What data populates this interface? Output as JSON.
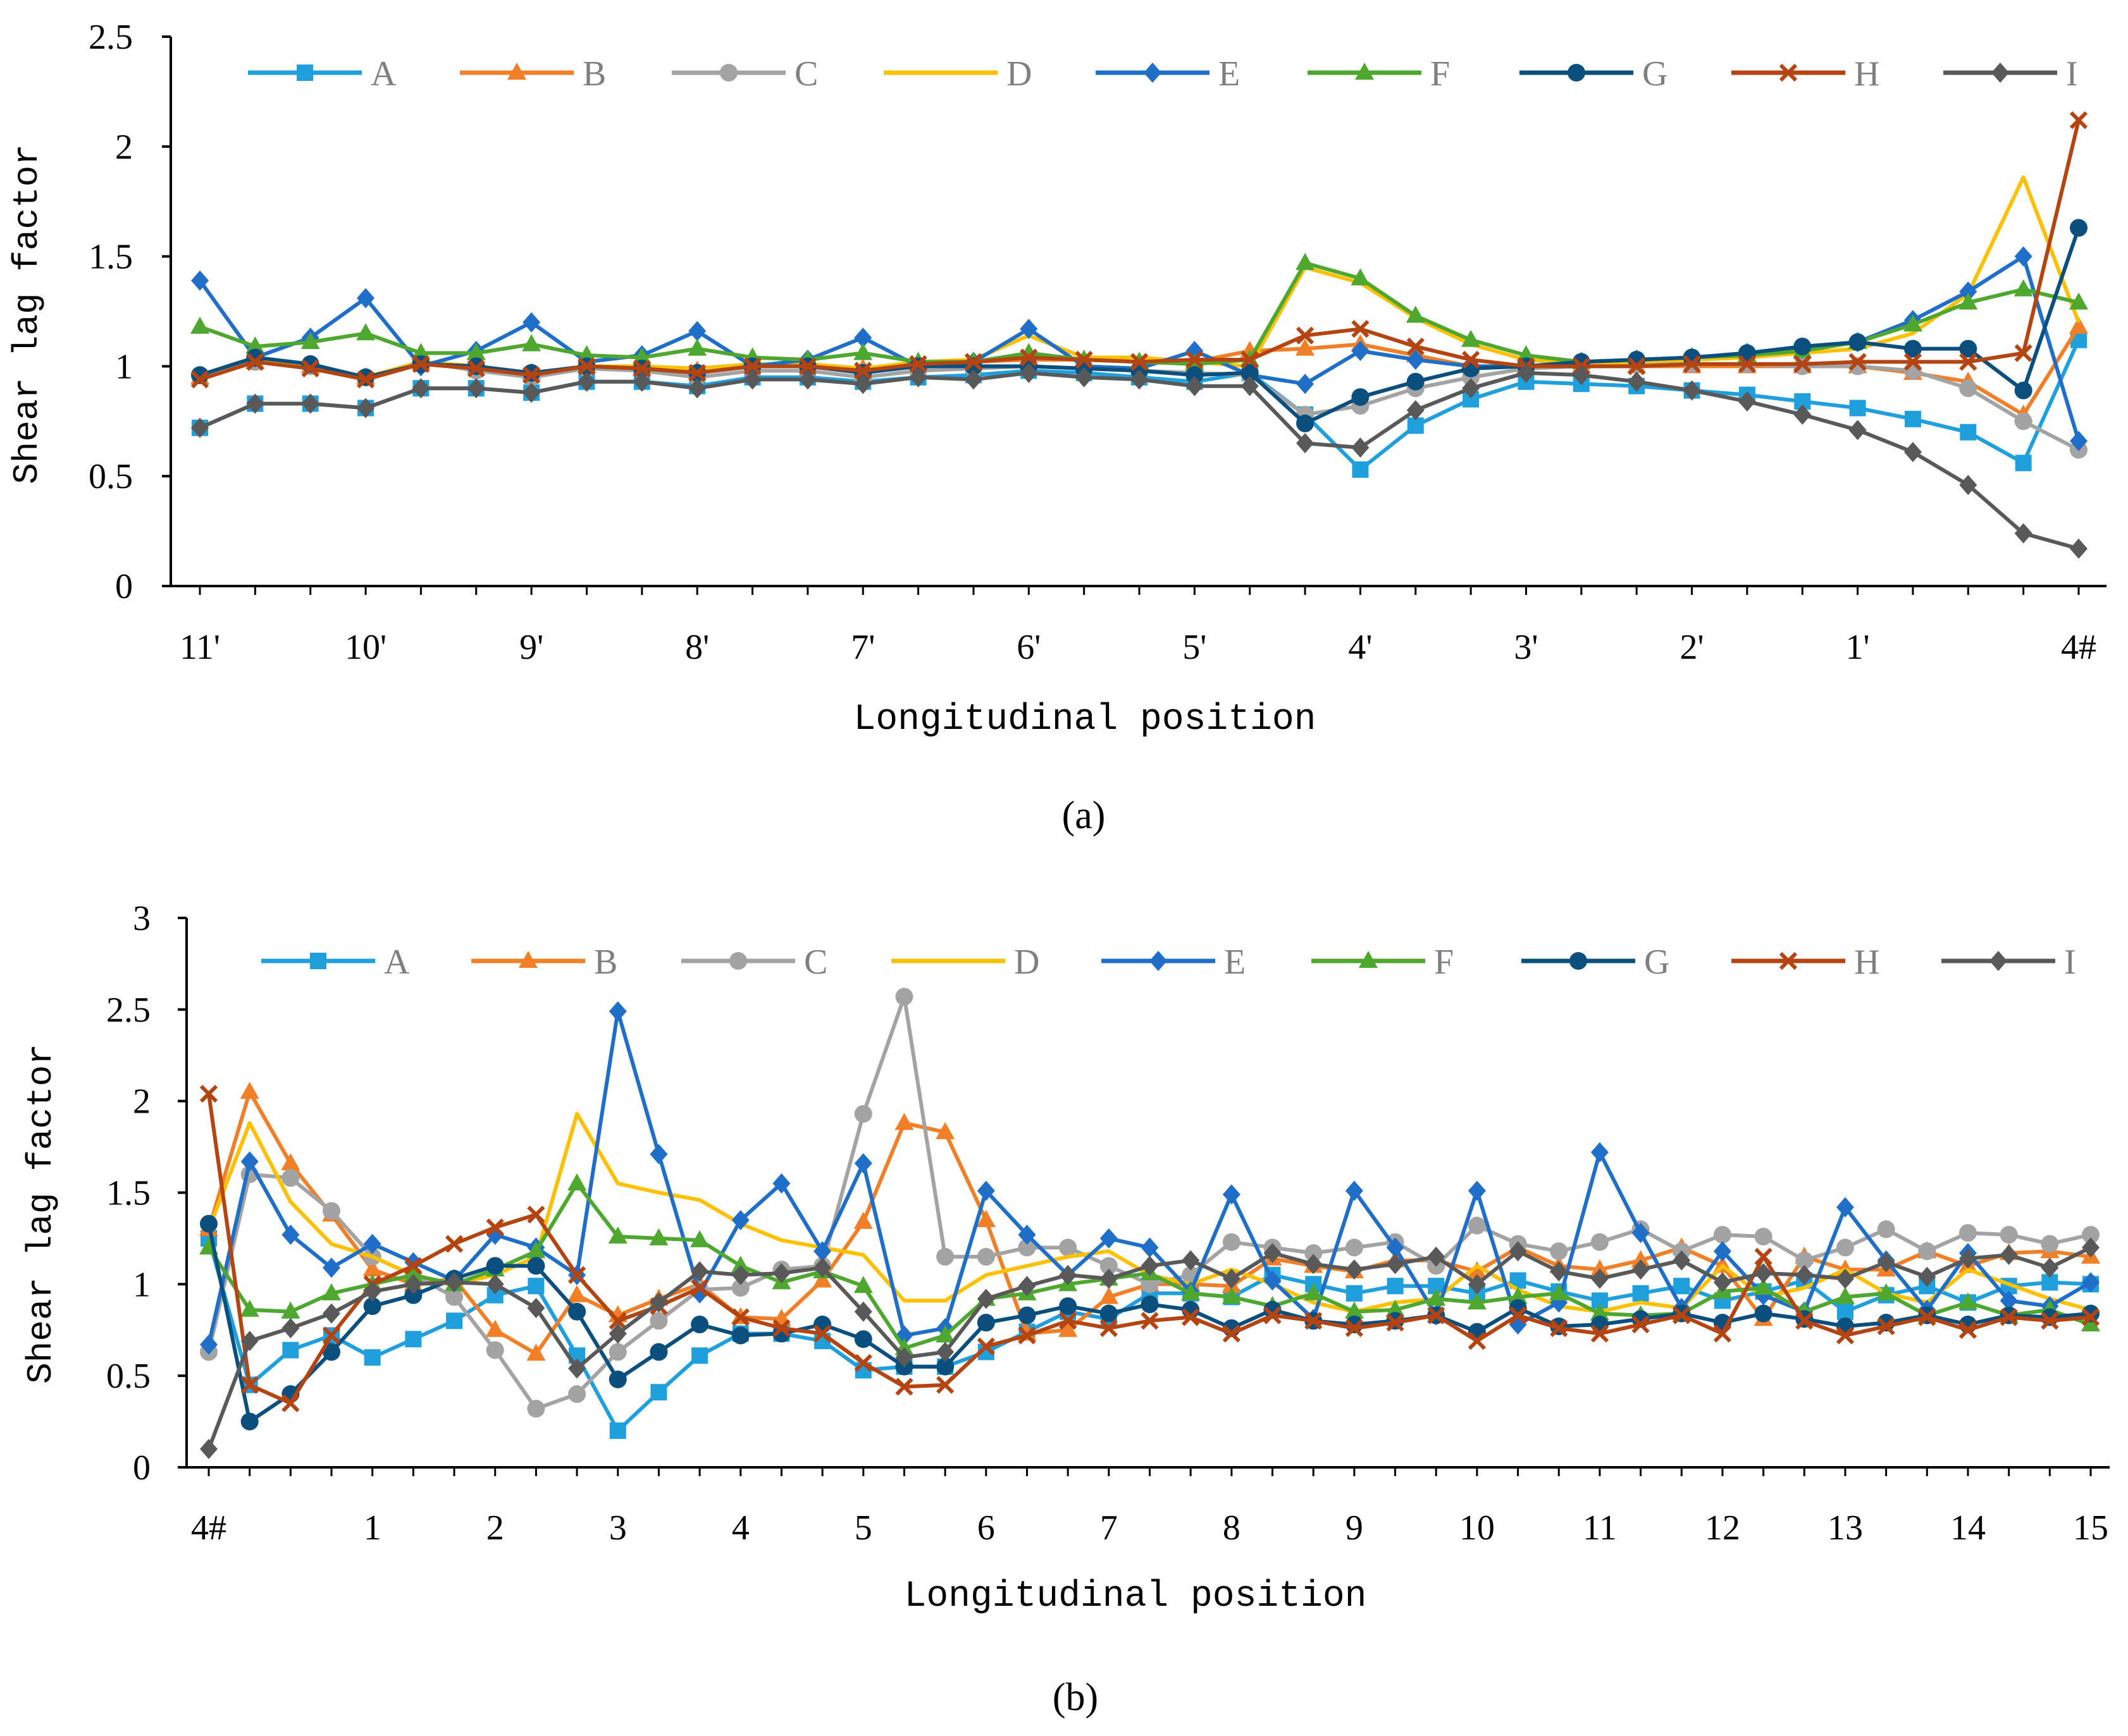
{
  "chart_data": [
    {
      "type": "line",
      "caption": "(a)",
      "ylabel": "Shear lag factor",
      "xlabel": "Longitudinal position",
      "ylim": [
        0,
        2.5
      ],
      "yticks": [
        "0",
        "0.5",
        "1",
        "1.5",
        "2",
        "2.5"
      ],
      "x_tick_labels": [
        "11'",
        "10'",
        "9'",
        "8'",
        "7'",
        "6'",
        "5'",
        "4'",
        "3'",
        "2'",
        "1'",
        "4#"
      ],
      "x_tick_indices": [
        0,
        3,
        6,
        9,
        12,
        15,
        18,
        21,
        24,
        27,
        30,
        34
      ],
      "grid": false,
      "legend": "top",
      "series": [
        {
          "name": "A",
          "color": "#1f9fdc",
          "marker": "square",
          "values": [
            0.72,
            0.83,
            0.83,
            0.81,
            0.9,
            0.9,
            0.88,
            0.93,
            0.93,
            0.91,
            0.95,
            0.95,
            0.93,
            0.95,
            0.96,
            0.98,
            0.97,
            0.95,
            0.93,
            0.97,
            0.78,
            0.53,
            0.73,
            0.85,
            0.93,
            0.92,
            0.91,
            0.89,
            0.87,
            0.84,
            0.81,
            0.76,
            0.7,
            0.56,
            1.12
          ]
        },
        {
          "name": "B",
          "color": "#f07f27",
          "marker": "triangle",
          "values": [
            0.95,
            1.02,
            1.0,
            0.95,
            1.02,
            1.0,
            0.97,
            1.0,
            0.99,
            0.98,
            1.01,
            1.01,
            0.99,
            1.01,
            1.02,
            1.03,
            1.03,
            1.02,
            1.02,
            1.07,
            1.08,
            1.1,
            1.05,
            1.0,
            1.0,
            1.0,
            1.0,
            1.0,
            1.0,
            1.0,
            1.0,
            0.97,
            0.93,
            0.78,
            1.18
          ]
        },
        {
          "name": "C",
          "color": "#a3a3a3",
          "marker": "circle",
          "values": [
            0.96,
            1.02,
            1.0,
            0.95,
            1.02,
            0.98,
            0.95,
            0.99,
            0.98,
            0.95,
            0.98,
            0.98,
            0.95,
            0.98,
            0.99,
            1.0,
            0.99,
            0.98,
            0.97,
            0.96,
            0.78,
            0.82,
            0.9,
            0.95,
            0.99,
            1.0,
            1.01,
            1.01,
            1.01,
            1.0,
            1.0,
            0.98,
            0.9,
            0.75,
            0.62
          ]
        },
        {
          "name": "D",
          "color": "#ffc000",
          "marker": "none",
          "values": [
            0.96,
            1.04,
            1.0,
            0.95,
            1.02,
            1.0,
            0.97,
            1.0,
            1.0,
            0.99,
            1.01,
            1.01,
            0.99,
            1.02,
            1.03,
            1.14,
            1.04,
            1.04,
            1.02,
            1.0,
            1.45,
            1.38,
            1.22,
            1.1,
            1.03,
            1.01,
            1.02,
            1.03,
            1.04,
            1.06,
            1.08,
            1.15,
            1.33,
            1.86,
            1.2
          ]
        },
        {
          "name": "E",
          "color": "#1f6fc8",
          "marker": "diamond",
          "values": [
            1.39,
            1.04,
            1.13,
            1.31,
            1.0,
            1.07,
            1.2,
            1.02,
            1.05,
            1.16,
            1.0,
            1.03,
            1.13,
            1.0,
            1.02,
            1.17,
            1.0,
            0.99,
            1.07,
            0.96,
            0.92,
            1.07,
            1.03,
            1.0,
            1.0,
            1.02,
            1.03,
            1.04,
            1.06,
            1.08,
            1.11,
            1.21,
            1.34,
            1.5,
            0.66
          ]
        },
        {
          "name": "F",
          "color": "#4ea72e",
          "marker": "triangle",
          "values": [
            1.18,
            1.09,
            1.11,
            1.15,
            1.06,
            1.06,
            1.1,
            1.05,
            1.04,
            1.08,
            1.04,
            1.03,
            1.06,
            1.02,
            1.02,
            1.06,
            1.03,
            1.02,
            1.01,
            1.03,
            1.47,
            1.4,
            1.23,
            1.12,
            1.05,
            1.02,
            1.03,
            1.04,
            1.05,
            1.07,
            1.11,
            1.19,
            1.29,
            1.35,
            1.29
          ]
        },
        {
          "name": "G",
          "color": "#0b4f7e",
          "marker": "circle",
          "values": [
            0.96,
            1.04,
            1.01,
            0.95,
            1.01,
            1.0,
            0.97,
            1.0,
            0.99,
            0.97,
            1.0,
            1.0,
            0.97,
            1.0,
            1.0,
            1.0,
            0.99,
            0.98,
            0.96,
            0.97,
            0.74,
            0.86,
            0.93,
            0.99,
            1.0,
            1.02,
            1.03,
            1.04,
            1.06,
            1.09,
            1.11,
            1.08,
            1.08,
            0.89,
            1.63
          ]
        },
        {
          "name": "H",
          "color": "#b44513",
          "marker": "x",
          "values": [
            0.94,
            1.02,
            0.99,
            0.94,
            1.01,
            0.99,
            0.96,
            1.0,
            0.99,
            0.97,
            1.0,
            1.0,
            0.98,
            1.01,
            1.02,
            1.04,
            1.03,
            1.02,
            1.03,
            1.03,
            1.14,
            1.17,
            1.09,
            1.03,
            1.0,
            1.0,
            1.0,
            1.01,
            1.01,
            1.01,
            1.02,
            1.02,
            1.02,
            1.06,
            2.12
          ]
        },
        {
          "name": "I",
          "color": "#595959",
          "marker": "diamond",
          "values": [
            0.72,
            0.83,
            0.83,
            0.81,
            0.9,
            0.9,
            0.88,
            0.93,
            0.93,
            0.9,
            0.94,
            0.94,
            0.92,
            0.95,
            0.94,
            0.97,
            0.95,
            0.94,
            0.91,
            0.91,
            0.65,
            0.63,
            0.8,
            0.9,
            0.97,
            0.96,
            0.93,
            0.89,
            0.84,
            0.78,
            0.71,
            0.61,
            0.46,
            0.24,
            0.17
          ]
        }
      ]
    },
    {
      "type": "line",
      "caption": "(b)",
      "ylabel": "Shear lag factor",
      "xlabel": "Longitudinal position",
      "ylim": [
        0,
        3
      ],
      "yticks": [
        "0",
        "0.5",
        "1",
        "1.5",
        "2",
        "2.5",
        "3"
      ],
      "x_tick_labels": [
        "4#",
        "1",
        "2",
        "3",
        "4",
        "5",
        "6",
        "7",
        "8",
        "9",
        "10",
        "11",
        "12",
        "13",
        "14",
        "15"
      ],
      "x_tick_indices": [
        0,
        4,
        7,
        10,
        13,
        16,
        19,
        22,
        25,
        28,
        31,
        34,
        37,
        40,
        43,
        46
      ],
      "grid": false,
      "legend": "top",
      "series": [
        {
          "name": "A",
          "color": "#1f9fdc",
          "marker": "square",
          "values": [
            1.25,
            0.45,
            0.64,
            0.72,
            0.6,
            0.7,
            0.8,
            0.94,
            0.99,
            0.61,
            0.2,
            0.41,
            0.61,
            0.73,
            0.73,
            0.69,
            0.53,
            0.55,
            0.55,
            0.63,
            0.74,
            0.85,
            0.81,
            0.95,
            0.95,
            0.93,
            1.05,
            1.0,
            0.95,
            0.99,
            0.99,
            0.95,
            1.02,
            0.96,
            0.91,
            0.95,
            0.99,
            0.91,
            0.96,
            1.02,
            0.85,
            0.94,
            0.99,
            0.9,
            0.99,
            1.01,
            1.0
          ]
        },
        {
          "name": "B",
          "color": "#f07f27",
          "marker": "triangle",
          "values": [
            1.3,
            2.05,
            1.66,
            1.38,
            1.08,
            1.0,
            1.03,
            0.75,
            0.62,
            0.94,
            0.83,
            0.92,
            1.0,
            0.82,
            0.81,
            1.02,
            1.34,
            1.88,
            1.83,
            1.35,
            0.73,
            0.75,
            0.93,
            1.0,
            1.0,
            0.99,
            1.14,
            1.1,
            1.07,
            1.13,
            1.13,
            1.07,
            1.2,
            1.1,
            1.08,
            1.13,
            1.2,
            1.1,
            0.81,
            1.15,
            1.08,
            1.08,
            1.18,
            1.1,
            1.17,
            1.18,
            1.15
          ]
        },
        {
          "name": "C",
          "color": "#a3a3a3",
          "marker": "circle",
          "values": [
            0.63,
            1.6,
            1.58,
            1.4,
            1.15,
            1.05,
            0.93,
            0.64,
            0.32,
            0.4,
            0.63,
            0.8,
            0.97,
            0.98,
            1.08,
            1.1,
            1.93,
            2.57,
            1.15,
            1.15,
            1.2,
            1.2,
            1.1,
            1.0,
            1.05,
            1.23,
            1.2,
            1.17,
            1.2,
            1.23,
            1.1,
            1.32,
            1.22,
            1.18,
            1.23,
            1.3,
            1.18,
            1.27,
            1.26,
            1.13,
            1.2,
            1.3,
            1.18,
            1.28,
            1.27,
            1.22,
            1.27
          ]
        },
        {
          "name": "D",
          "color": "#ffc000",
          "marker": "none",
          "values": [
            1.3,
            1.88,
            1.45,
            1.22,
            1.15,
            1.05,
            1.0,
            1.05,
            1.15,
            1.93,
            1.55,
            1.5,
            1.46,
            1.33,
            1.24,
            1.2,
            1.16,
            0.91,
            0.91,
            1.05,
            1.1,
            1.15,
            1.18,
            1.05,
            1.0,
            1.08,
            1.0,
            0.9,
            0.85,
            0.9,
            0.92,
            1.1,
            0.97,
            0.88,
            0.85,
            0.9,
            0.87,
            1.1,
            0.93,
            0.98,
            1.08,
            0.95,
            0.9,
            1.08,
            1.0,
            0.92,
            0.86
          ]
        },
        {
          "name": "E",
          "color": "#1f6fc8",
          "marker": "diamond",
          "values": [
            0.67,
            1.67,
            1.27,
            1.09,
            1.22,
            1.12,
            1.02,
            1.27,
            1.2,
            1.05,
            2.49,
            1.71,
            0.95,
            1.35,
            1.55,
            1.18,
            1.66,
            0.72,
            0.76,
            1.51,
            1.27,
            1.05,
            1.25,
            1.2,
            0.96,
            1.49,
            1.02,
            0.81,
            1.51,
            1.2,
            0.83,
            1.51,
            0.78,
            0.9,
            1.72,
            1.28,
            0.87,
            1.18,
            0.94,
            0.85,
            1.42,
            1.13,
            0.86,
            1.17,
            0.91,
            0.88,
            1.01
          ]
        },
        {
          "name": "F",
          "color": "#4ea72e",
          "marker": "triangle",
          "values": [
            1.2,
            0.86,
            0.85,
            0.95,
            1.0,
            1.05,
            1.0,
            1.08,
            1.18,
            1.55,
            1.26,
            1.25,
            1.24,
            1.1,
            1.01,
            1.07,
            0.99,
            0.65,
            0.72,
            0.92,
            0.95,
            1.0,
            1.03,
            1.06,
            0.95,
            0.93,
            0.88,
            0.95,
            0.85,
            0.86,
            0.92,
            0.9,
            0.93,
            0.95,
            0.84,
            0.83,
            0.84,
            0.96,
            0.98,
            0.85,
            0.93,
            0.95,
            0.83,
            0.9,
            0.83,
            0.86,
            0.78
          ]
        },
        {
          "name": "G",
          "color": "#0b4f7e",
          "marker": "circle",
          "values": [
            1.33,
            0.25,
            0.4,
            0.63,
            0.88,
            0.94,
            1.03,
            1.1,
            1.1,
            0.85,
            0.48,
            0.63,
            0.78,
            0.72,
            0.73,
            0.78,
            0.7,
            0.55,
            0.55,
            0.79,
            0.83,
            0.88,
            0.84,
            0.89,
            0.86,
            0.76,
            0.86,
            0.8,
            0.78,
            0.8,
            0.83,
            0.74,
            0.87,
            0.77,
            0.78,
            0.81,
            0.84,
            0.79,
            0.84,
            0.81,
            0.77,
            0.79,
            0.83,
            0.78,
            0.83,
            0.82,
            0.84
          ]
        },
        {
          "name": "H",
          "color": "#b44513",
          "marker": "x",
          "values": [
            2.04,
            0.45,
            0.35,
            0.72,
            1.0,
            1.1,
            1.22,
            1.31,
            1.38,
            1.05,
            0.8,
            0.88,
            0.98,
            0.82,
            0.76,
            0.73,
            0.57,
            0.44,
            0.45,
            0.66,
            0.72,
            0.8,
            0.76,
            0.8,
            0.82,
            0.73,
            0.83,
            0.8,
            0.76,
            0.79,
            0.83,
            0.69,
            0.83,
            0.76,
            0.73,
            0.78,
            0.83,
            0.73,
            1.15,
            0.8,
            0.72,
            0.77,
            0.82,
            0.75,
            0.82,
            0.8,
            0.82
          ]
        },
        {
          "name": "I",
          "color": "#595959",
          "marker": "diamond",
          "values": [
            0.1,
            0.69,
            0.76,
            0.84,
            0.96,
            1.0,
            1.01,
            1.0,
            0.87,
            0.54,
            0.73,
            0.9,
            1.07,
            1.05,
            1.06,
            1.09,
            0.85,
            0.6,
            0.63,
            0.92,
            0.99,
            1.05,
            1.03,
            1.1,
            1.13,
            1.03,
            1.17,
            1.11,
            1.08,
            1.11,
            1.15,
            1.0,
            1.18,
            1.07,
            1.03,
            1.08,
            1.13,
            1.01,
            1.06,
            1.05,
            1.03,
            1.12,
            1.04,
            1.14,
            1.16,
            1.09,
            1.2
          ]
        }
      ]
    }
  ]
}
